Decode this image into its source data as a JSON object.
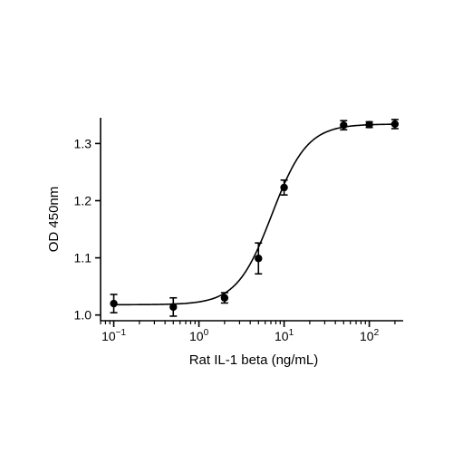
{
  "chart_data": {
    "type": "scatter",
    "xlabel": "Rat IL-1 beta (ng/mL)",
    "ylabel": "OD 450nm",
    "xscale": "log",
    "xlim": [
      0.07,
      250
    ],
    "ylim": [
      0.99,
      1.345
    ],
    "x_ticks": [
      {
        "value": 0.1,
        "base": "10",
        "exp": "−1"
      },
      {
        "value": 1,
        "base": "10",
        "exp": "0"
      },
      {
        "value": 10,
        "base": "10",
        "exp": "1"
      },
      {
        "value": 100,
        "base": "10",
        "exp": "2"
      }
    ],
    "y_ticks": [
      {
        "value": 1.0,
        "label": "1.0"
      },
      {
        "value": 1.1,
        "label": "1.1"
      },
      {
        "value": 1.2,
        "label": "1.2"
      },
      {
        "value": 1.3,
        "label": "1.3"
      }
    ],
    "points": [
      {
        "x": 0.1,
        "y": 1.02,
        "err": 0.016
      },
      {
        "x": 0.5,
        "y": 1.014,
        "err": 0.016
      },
      {
        "x": 2,
        "y": 1.03,
        "err": 0.009
      },
      {
        "x": 5,
        "y": 1.099,
        "err": 0.027
      },
      {
        "x": 10,
        "y": 1.223,
        "err": 0.013
      },
      {
        "x": 50,
        "y": 1.332,
        "err": 0.008
      },
      {
        "x": 100,
        "y": 1.333,
        "err": 0.005
      },
      {
        "x": 200,
        "y": 1.334,
        "err": 0.008
      }
    ],
    "fit": {
      "model": "4PL",
      "bottom": 1.018,
      "top": 1.334,
      "ec50": 7.2,
      "hill": 2.1
    },
    "grid": false,
    "legend": "none",
    "colors": {
      "line": "#000000",
      "marker": "#000000"
    }
  }
}
